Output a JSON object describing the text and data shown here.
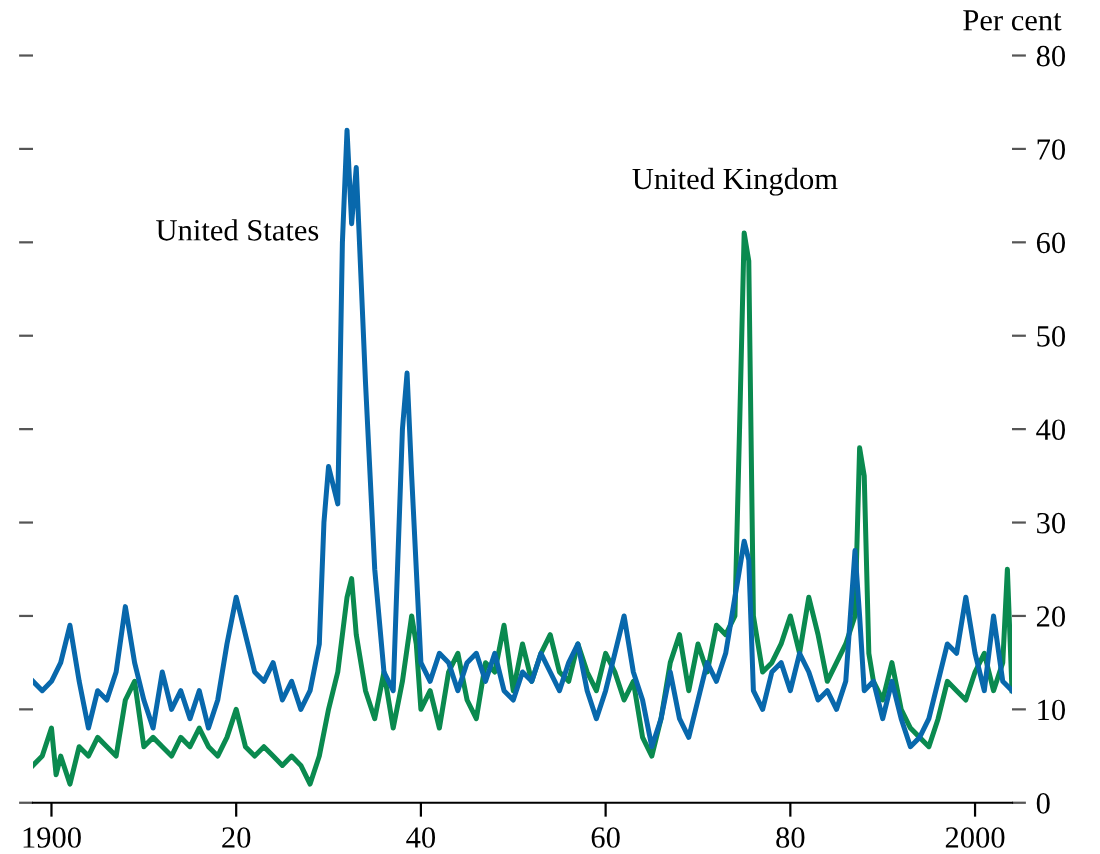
{
  "chart_data": {
    "type": "line",
    "ylabel": "Per cent",
    "xlim": [
      1898,
      2004
    ],
    "xticks": [
      {
        "value": 1900,
        "label": "1900"
      },
      {
        "value": 1920,
        "label": "20"
      },
      {
        "value": 1940,
        "label": "40"
      },
      {
        "value": 1960,
        "label": "60"
      },
      {
        "value": 1980,
        "label": "80"
      },
      {
        "value": 2000,
        "label": "2000"
      }
    ],
    "ylim": [
      0,
      80
    ],
    "yticks": [
      0,
      10,
      20,
      30,
      40,
      50,
      60,
      70,
      80
    ],
    "grid": false,
    "legend": false,
    "marker": "none",
    "line_style": "solid",
    "series": [
      {
        "name": "United Kingdom",
        "color": "#0a8a4f",
        "x": [
          1898,
          1899,
          1900,
          1900.5,
          1901,
          1902,
          1903,
          1904,
          1905,
          1906,
          1907,
          1908,
          1909,
          1910,
          1911,
          1912,
          1913,
          1914,
          1915,
          1916,
          1917,
          1918,
          1919,
          1920,
          1921,
          1922,
          1923,
          1924,
          1925,
          1926,
          1927,
          1928,
          1929,
          1930,
          1931,
          1932,
          1932.5,
          1933,
          1934,
          1935,
          1936,
          1937,
          1938,
          1939,
          1939.5,
          1940,
          1941,
          1942,
          1943,
          1944,
          1945,
          1946,
          1947,
          1948,
          1949,
          1950,
          1951,
          1952,
          1953,
          1954,
          1955,
          1956,
          1957,
          1958,
          1959,
          1960,
          1961,
          1962,
          1963,
          1964,
          1965,
          1966,
          1967,
          1968,
          1969,
          1970,
          1971,
          1972,
          1973,
          1974,
          1974.5,
          1975,
          1975.5,
          1976,
          1977,
          1978,
          1979,
          1980,
          1981,
          1982,
          1983,
          1984,
          1985,
          1986,
          1987,
          1987.5,
          1988,
          1988.5,
          1989,
          1990,
          1991,
          1992,
          1993,
          1994,
          1995,
          1996,
          1997,
          1998,
          1999,
          2000,
          2001,
          2002,
          2003,
          2003.5,
          2004
        ],
        "values": [
          4,
          5,
          8,
          3,
          5,
          2,
          6,
          5,
          7,
          6,
          5,
          11,
          13,
          6,
          7,
          6,
          5,
          7,
          6,
          8,
          6,
          5,
          7,
          10,
          6,
          5,
          6,
          5,
          4,
          5,
          4,
          2,
          5,
          10,
          14,
          22,
          24,
          18,
          12,
          9,
          14,
          8,
          13,
          20,
          17,
          10,
          12,
          8,
          14,
          16,
          11,
          9,
          15,
          14,
          19,
          12,
          17,
          13,
          16,
          18,
          14,
          13,
          17,
          14,
          12,
          16,
          14,
          11,
          13,
          7,
          5,
          9,
          15,
          18,
          12,
          17,
          14,
          19,
          18,
          20,
          40,
          61,
          58,
          20,
          14,
          15,
          17,
          20,
          16,
          22,
          18,
          13,
          15,
          17,
          20,
          38,
          35,
          16,
          13,
          11,
          15,
          10,
          8,
          7,
          6,
          9,
          13,
          12,
          11,
          14,
          16,
          12,
          15,
          25,
          12
        ]
      },
      {
        "name": "United States",
        "color": "#0868ac",
        "x": [
          1898,
          1899,
          1900,
          1901,
          1902,
          1903,
          1904,
          1905,
          1906,
          1907,
          1908,
          1909,
          1910,
          1911,
          1912,
          1913,
          1914,
          1915,
          1916,
          1917,
          1918,
          1919,
          1920,
          1921,
          1922,
          1923,
          1924,
          1925,
          1926,
          1927,
          1928,
          1929,
          1929.5,
          1930,
          1931,
          1931.5,
          1932,
          1932.5,
          1933,
          1934,
          1935,
          1936,
          1937,
          1938,
          1938.5,
          1939,
          1940,
          1941,
          1942,
          1943,
          1944,
          1945,
          1946,
          1947,
          1948,
          1949,
          1950,
          1951,
          1952,
          1953,
          1954,
          1955,
          1956,
          1957,
          1958,
          1959,
          1960,
          1961,
          1962,
          1963,
          1964,
          1965,
          1966,
          1967,
          1968,
          1969,
          1970,
          1971,
          1972,
          1973,
          1974,
          1975,
          1975.5,
          1976,
          1977,
          1978,
          1979,
          1980,
          1981,
          1982,
          1983,
          1984,
          1985,
          1986,
          1987,
          1987.5,
          1988,
          1989,
          1990,
          1991,
          1992,
          1993,
          1994,
          1995,
          1996,
          1997,
          1998,
          1999,
          2000,
          2001,
          2002,
          2003,
          2004
        ],
        "values": [
          13,
          12,
          13,
          15,
          19,
          13,
          8,
          12,
          11,
          14,
          21,
          15,
          11,
          8,
          14,
          10,
          12,
          9,
          12,
          8,
          11,
          17,
          22,
          18,
          14,
          13,
          15,
          11,
          13,
          10,
          12,
          17,
          30,
          36,
          32,
          60,
          72,
          62,
          68,
          45,
          25,
          14,
          12,
          40,
          46,
          35,
          15,
          13,
          16,
          15,
          12,
          15,
          16,
          13,
          16,
          12,
          11,
          14,
          13,
          16,
          14,
          12,
          15,
          17,
          12,
          9,
          12,
          16,
          20,
          14,
          11,
          6,
          9,
          14,
          9,
          7,
          11,
          15,
          13,
          16,
          22,
          28,
          26,
          12,
          10,
          14,
          15,
          12,
          16,
          14,
          11,
          12,
          10,
          13,
          27,
          20,
          12,
          13,
          9,
          13,
          9,
          6,
          7,
          9,
          13,
          17,
          16,
          22,
          16,
          12,
          20,
          13,
          12
        ]
      }
    ]
  }
}
